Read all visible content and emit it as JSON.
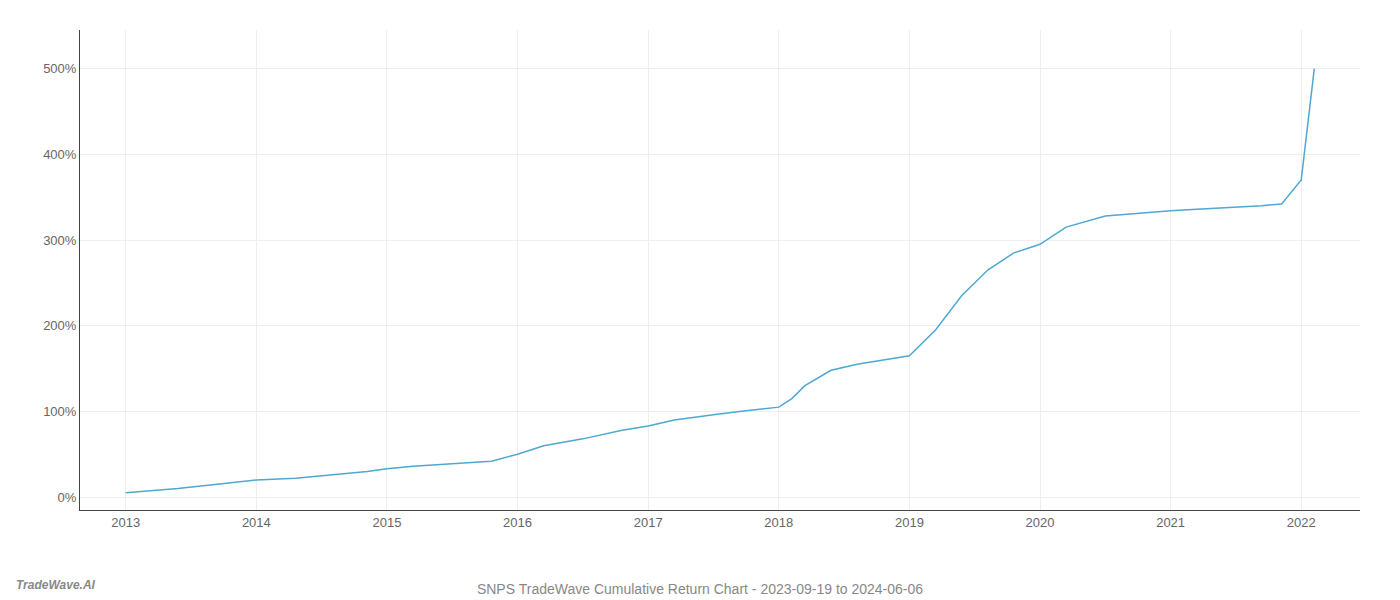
{
  "chart_data": {
    "type": "line",
    "title": "SNPS TradeWave Cumulative Return Chart - 2023-09-19 to 2024-06-06",
    "annotations": [
      "TradeWave.AI"
    ],
    "x": [
      2013.0,
      2013.15,
      2013.4,
      2013.7,
      2014.0,
      2014.3,
      2014.6,
      2014.85,
      2015.0,
      2015.2,
      2015.5,
      2015.8,
      2016.0,
      2016.2,
      2016.5,
      2016.8,
      2017.0,
      2017.2,
      2017.5,
      2017.7,
      2018.0,
      2018.1,
      2018.2,
      2018.4,
      2018.6,
      2018.8,
      2019.0,
      2019.2,
      2019.4,
      2019.6,
      2019.8,
      2020.0,
      2020.2,
      2020.5,
      2020.8,
      2021.0,
      2021.2,
      2021.5,
      2021.7,
      2021.85,
      2022.0,
      2022.1
    ],
    "values": [
      5,
      7,
      10,
      15,
      20,
      22,
      26,
      30,
      33,
      36,
      39,
      42,
      50,
      60,
      68,
      78,
      83,
      90,
      96,
      100,
      105,
      115,
      130,
      148,
      155,
      160,
      165,
      195,
      235,
      265,
      285,
      295,
      315,
      328,
      332,
      334,
      336,
      338,
      340,
      342,
      370,
      500
    ],
    "color": "#4fa8d0",
    "xlim": [
      2012.65,
      2022.45
    ],
    "xticks": [
      2013,
      2014,
      2015,
      2016,
      2017,
      2018,
      2019,
      2020,
      2021,
      2022
    ],
    "ylim": [
      -15,
      545
    ],
    "yticks": [
      {
        "value": 0,
        "label": "0%"
      },
      {
        "value": 100,
        "label": "100%"
      },
      {
        "value": 200,
        "label": "200%"
      },
      {
        "value": 300,
        "label": "300%"
      },
      {
        "value": 400,
        "label": "400%"
      },
      {
        "value": 500,
        "label": "500%"
      }
    ],
    "grid": true
  }
}
